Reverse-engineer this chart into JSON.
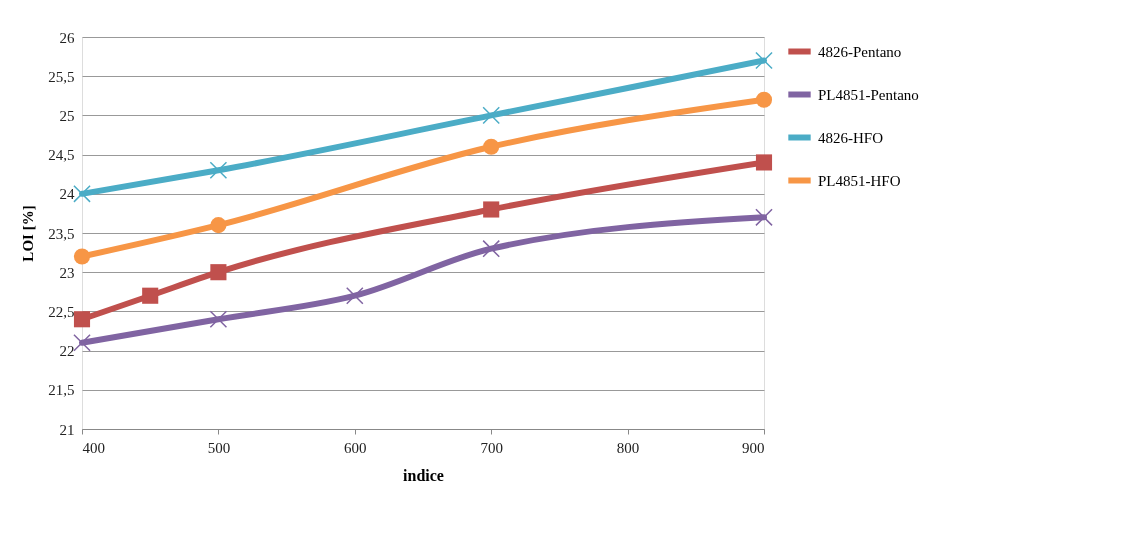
{
  "chart_data": {
    "type": "line",
    "xlabel": "indice",
    "ylabel": "LOI [%]",
    "xlim": [
      400,
      900
    ],
    "xticks": [
      400,
      500,
      600,
      700,
      800,
      900
    ],
    "ylim": [
      21,
      26
    ],
    "yticks": [
      21,
      {
        "value": 21.5,
        "label": "21,5"
      },
      22,
      {
        "value": 22.5,
        "label": "22,5"
      },
      23,
      {
        "value": 23.5,
        "label": "23,5"
      },
      24,
      {
        "value": 24.5,
        "label": "24,5"
      },
      25,
      {
        "value": 25.5,
        "label": "25,5"
      },
      26
    ],
    "grid": "y",
    "legend": "right",
    "line_style": "solid",
    "series": [
      {
        "name": "4826-Pentano",
        "color": "#c0504d",
        "marker": "square",
        "x": [
          400,
          450,
          500,
          700,
          900
        ],
        "values": [
          22.4,
          22.7,
          23.0,
          23.8,
          24.4
        ]
      },
      {
        "name": "PL4851-Pentano",
        "color": "#8064a2",
        "marker": "cross",
        "x": [
          400,
          500,
          600,
          700,
          900
        ],
        "values": [
          22.1,
          22.4,
          22.7,
          23.3,
          23.7
        ]
      },
      {
        "name": "4826-HFO",
        "color": "#4bacc6",
        "marker": "cross",
        "x": [
          400,
          500,
          700,
          900
        ],
        "values": [
          24.0,
          24.3,
          25.0,
          25.7
        ]
      },
      {
        "name": "PL4851-HFO",
        "color": "#f79646",
        "marker": "circle",
        "x": [
          400,
          500,
          700,
          900
        ],
        "values": [
          23.2,
          23.6,
          24.6,
          25.2
        ]
      }
    ]
  }
}
